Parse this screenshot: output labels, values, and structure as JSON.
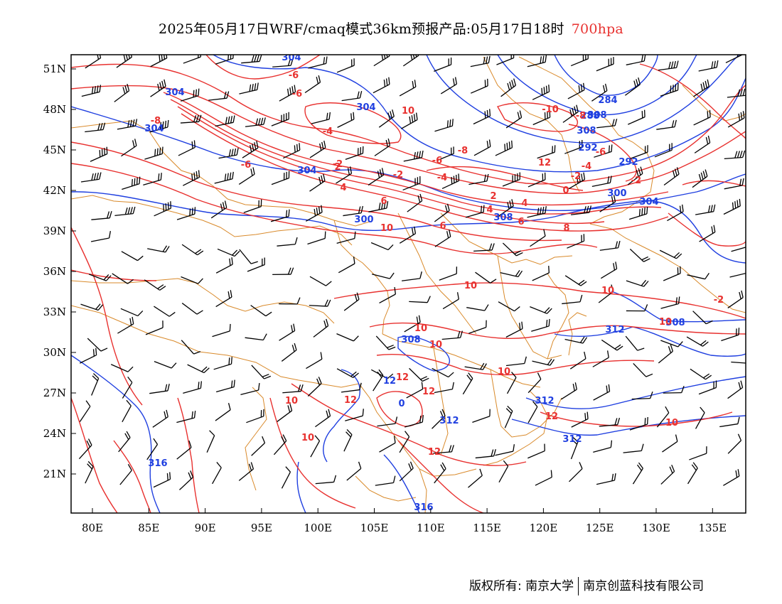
{
  "title": {
    "main": "2025年05月17日WRF/cmaq模式36km预报产品:05月17日18时",
    "level": "700hpa",
    "level_color": "#e8312f"
  },
  "axes": {
    "x_ticks": [
      "80E",
      "85E",
      "90E",
      "95E",
      "100E",
      "105E",
      "110E",
      "115E",
      "120E",
      "125E",
      "130E",
      "135E"
    ],
    "y_ticks": [
      "51N",
      "48N",
      "45N",
      "42N",
      "39N",
      "36N",
      "33N",
      "30N",
      "27N",
      "24N",
      "21N"
    ]
  },
  "colors": {
    "geopotential": "#1f3fe0",
    "temperature": "#e8312f",
    "boundaries": "#d98a2b",
    "wind_barbs": "#000000"
  },
  "contour_labels": {
    "geopotential": [
      "304",
      "304",
      "304",
      "304",
      "304",
      "300",
      "308",
      "308",
      "308",
      "308",
      "284",
      "288",
      "292",
      "292",
      "300",
      "304",
      "308",
      "312",
      "312",
      "312",
      "312",
      "316",
      "316",
      "12",
      "0"
    ],
    "temperature": [
      "-6",
      "-6",
      "-8",
      "-4",
      "-2",
      "-2",
      "-4",
      "-6",
      "-8",
      "-6",
      "-10",
      "-8",
      "-6",
      "-4",
      "-2",
      "-2",
      "0",
      "2",
      "4",
      "2",
      "4",
      "4",
      "6",
      "6",
      "6",
      "8",
      "10",
      "10",
      "10",
      "10",
      "10",
      "10",
      "10",
      "10",
      "10",
      "10",
      "10",
      "12",
      "12",
      "12",
      "12",
      "12",
      "12",
      "-2"
    ]
  },
  "copyright": {
    "left": "版权所有: 南京大学",
    "right": "南京创蓝科技有限公司"
  }
}
